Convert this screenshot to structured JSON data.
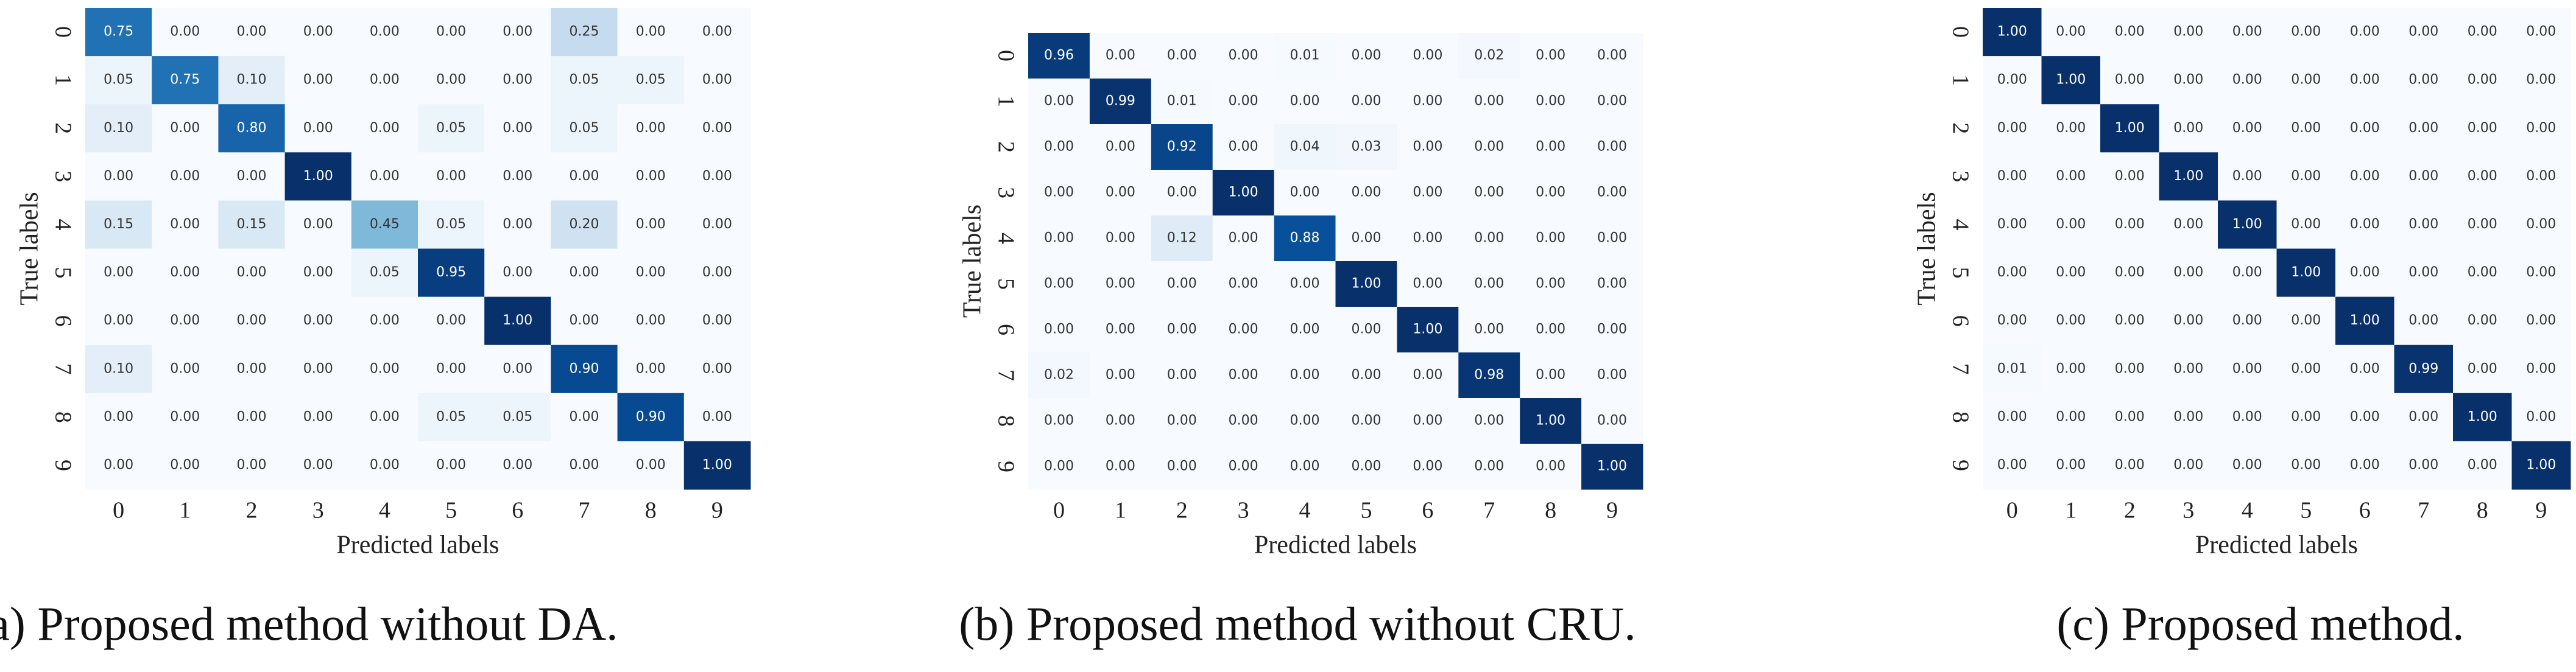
{
  "chart_data": [
    {
      "type": "heatmap",
      "caption": "(a) Proposed method without DA.",
      "xlabel": "Predicted labels",
      "ylabel": "True labels",
      "x_categories": [
        "0",
        "1",
        "2",
        "3",
        "4",
        "5",
        "6",
        "7",
        "8",
        "9"
      ],
      "y_categories": [
        "0",
        "1",
        "2",
        "3",
        "4",
        "5",
        "6",
        "7",
        "8",
        "9"
      ],
      "color_scale": [
        "#f7fbff",
        "#deebf7",
        "#c6dbef",
        "#9ecae1",
        "#6baed6",
        "#4292c6",
        "#2171b5",
        "#08519c",
        "#08306b"
      ],
      "values": [
        [
          0.75,
          0,
          0,
          0,
          0,
          0,
          0,
          0.25,
          0,
          0
        ],
        [
          0.05,
          0.75,
          0.1,
          0,
          0,
          0,
          0,
          0.05,
          0.05,
          0
        ],
        [
          0.1,
          0,
          0.8,
          0,
          0,
          0.05,
          0,
          0.05,
          0,
          0
        ],
        [
          0,
          0,
          0,
          1,
          0,
          0,
          0,
          0,
          0,
          0
        ],
        [
          0.15,
          0,
          0.15,
          0,
          0.45,
          0.05,
          0,
          0.2,
          0,
          0
        ],
        [
          0,
          0,
          0,
          0,
          0.05,
          0.95,
          0,
          0,
          0,
          0
        ],
        [
          0,
          0,
          0,
          0,
          0,
          0,
          1,
          0,
          0,
          0
        ],
        [
          0.1,
          0,
          0,
          0,
          0,
          0,
          0,
          0.9,
          0,
          0
        ],
        [
          0,
          0,
          0,
          0,
          0,
          0.05,
          0.05,
          0,
          0.9,
          0
        ],
        [
          0,
          0,
          0,
          0,
          0,
          0,
          0,
          0,
          0,
          1
        ]
      ],
      "value_labels": [
        [
          "0.75",
          "0.00",
          "0.00",
          "0.00",
          "0.00",
          "0.00",
          "0.00",
          "0.25",
          "0.00",
          "0.00"
        ],
        [
          "0.05",
          "0.75",
          "0.10",
          "0.00",
          "0.00",
          "0.00",
          "0.00",
          "0.05",
          "0.05",
          "0.00"
        ],
        [
          "0.10",
          "0.00",
          "0.80",
          "0.00",
          "0.00",
          "0.05",
          "0.00",
          "0.05",
          "0.00",
          "0.00"
        ],
        [
          "0.00",
          "0.00",
          "0.00",
          "1.00",
          "0.00",
          "0.00",
          "0.00",
          "0.00",
          "0.00",
          "0.00"
        ],
        [
          "0.15",
          "0.00",
          "0.15",
          "0.00",
          "0.45",
          "0.05",
          "0.00",
          "0.20",
          "0.00",
          "0.00"
        ],
        [
          "0.00",
          "0.00",
          "0.00",
          "0.00",
          "0.05",
          "0.95",
          "0.00",
          "0.00",
          "0.00",
          "0.00"
        ],
        [
          "0.00",
          "0.00",
          "0.00",
          "0.00",
          "0.00",
          "0.00",
          "1.00",
          "0.00",
          "0.00",
          "0.00"
        ],
        [
          "0.10",
          "0.00",
          "0.00",
          "0.00",
          "0.00",
          "0.00",
          "0.00",
          "0.90",
          "0.00",
          "0.00"
        ],
        [
          "0.00",
          "0.00",
          "0.00",
          "0.00",
          "0.00",
          "0.05",
          "0.05",
          "0.00",
          "0.90",
          "0.00"
        ],
        [
          "0.00",
          "0.00",
          "0.00",
          "0.00",
          "0.00",
          "0.00",
          "0.00",
          "0.00",
          "0.00",
          "1.00"
        ]
      ]
    },
    {
      "type": "heatmap",
      "caption": "(b) Proposed method without CRU.",
      "xlabel": "Predicted labels",
      "ylabel": "True labels",
      "x_categories": [
        "0",
        "1",
        "2",
        "3",
        "4",
        "5",
        "6",
        "7",
        "8",
        "9"
      ],
      "y_categories": [
        "0",
        "1",
        "2",
        "3",
        "4",
        "5",
        "6",
        "7",
        "8",
        "9"
      ],
      "color_scale": [
        "#f7fbff",
        "#deebf7",
        "#c6dbef",
        "#9ecae1",
        "#6baed6",
        "#4292c6",
        "#2171b5",
        "#08519c",
        "#08306b"
      ],
      "values": [
        [
          0.96,
          0,
          0,
          0,
          0.01,
          0,
          0,
          0.02,
          0,
          0
        ],
        [
          0,
          0.99,
          0.01,
          0,
          0,
          0,
          0,
          0,
          0,
          0
        ],
        [
          0,
          0,
          0.92,
          0,
          0.04,
          0.03,
          0,
          0,
          0,
          0
        ],
        [
          0,
          0,
          0,
          1,
          0,
          0,
          0,
          0,
          0,
          0
        ],
        [
          0,
          0,
          0.12,
          0,
          0.88,
          0,
          0,
          0,
          0,
          0
        ],
        [
          0,
          0,
          0,
          0,
          0,
          1,
          0,
          0,
          0,
          0
        ],
        [
          0,
          0,
          0,
          0,
          0,
          0,
          1,
          0,
          0,
          0
        ],
        [
          0.02,
          0,
          0,
          0,
          0,
          0,
          0,
          0.98,
          0,
          0
        ],
        [
          0,
          0,
          0,
          0,
          0,
          0,
          0,
          0,
          1,
          0
        ],
        [
          0,
          0,
          0,
          0,
          0,
          0,
          0,
          0,
          0,
          1
        ]
      ],
      "value_labels": [
        [
          "0.96",
          "0.00",
          "0.00",
          "0.00",
          "0.01",
          "0.00",
          "0.00",
          "0.02",
          "0.00",
          "0.00"
        ],
        [
          "0.00",
          "0.99",
          "0.01",
          "0.00",
          "0.00",
          "0.00",
          "0.00",
          "0.00",
          "0.00",
          "0.00"
        ],
        [
          "0.00",
          "0.00",
          "0.92",
          "0.00",
          "0.04",
          "0.03",
          "0.00",
          "0.00",
          "0.00",
          "0.00"
        ],
        [
          "0.00",
          "0.00",
          "0.00",
          "1.00",
          "0.00",
          "0.00",
          "0.00",
          "0.00",
          "0.00",
          "0.00"
        ],
        [
          "0.00",
          "0.00",
          "0.12",
          "0.00",
          "0.88",
          "0.00",
          "0.00",
          "0.00",
          "0.00",
          "0.00"
        ],
        [
          "0.00",
          "0.00",
          "0.00",
          "0.00",
          "0.00",
          "1.00",
          "0.00",
          "0.00",
          "0.00",
          "0.00"
        ],
        [
          "0.00",
          "0.00",
          "0.00",
          "0.00",
          "0.00",
          "0.00",
          "1.00",
          "0.00",
          "0.00",
          "0.00"
        ],
        [
          "0.02",
          "0.00",
          "0.00",
          "0.00",
          "0.00",
          "0.00",
          "0.00",
          "0.98",
          "0.00",
          "0.00"
        ],
        [
          "0.00",
          "0.00",
          "0.00",
          "0.00",
          "0.00",
          "0.00",
          "0.00",
          "0.00",
          "1.00",
          "0.00"
        ],
        [
          "0.00",
          "0.00",
          "0.00",
          "0.00",
          "0.00",
          "0.00",
          "0.00",
          "0.00",
          "0.00",
          "1.00"
        ]
      ]
    },
    {
      "type": "heatmap",
      "caption": "(c) Proposed method.",
      "xlabel": "Predicted labels",
      "ylabel": "True labels",
      "x_categories": [
        "0",
        "1",
        "2",
        "3",
        "4",
        "5",
        "6",
        "7",
        "8",
        "9"
      ],
      "y_categories": [
        "0",
        "1",
        "2",
        "3",
        "4",
        "5",
        "6",
        "7",
        "8",
        "9"
      ],
      "color_scale": [
        "#f7fbff",
        "#deebf7",
        "#c6dbef",
        "#9ecae1",
        "#6baed6",
        "#4292c6",
        "#2171b5",
        "#08519c",
        "#08306b"
      ],
      "values": [
        [
          1,
          0,
          0,
          0,
          0,
          0,
          0,
          0,
          0,
          0
        ],
        [
          0,
          1,
          0,
          0,
          0,
          0,
          0,
          0,
          0,
          0
        ],
        [
          0,
          0,
          1,
          0,
          0,
          0,
          0,
          0,
          0,
          0
        ],
        [
          0,
          0,
          0,
          1,
          0,
          0,
          0,
          0,
          0,
          0
        ],
        [
          0,
          0,
          0,
          0,
          1,
          0,
          0,
          0,
          0,
          0
        ],
        [
          0,
          0,
          0,
          0,
          0,
          1,
          0,
          0,
          0,
          0
        ],
        [
          0,
          0,
          0,
          0,
          0,
          0,
          1,
          0,
          0,
          0
        ],
        [
          0.01,
          0,
          0,
          0,
          0,
          0,
          0,
          0.99,
          0,
          0
        ],
        [
          0,
          0,
          0,
          0,
          0,
          0,
          0,
          0,
          1,
          0
        ],
        [
          0,
          0,
          0,
          0,
          0,
          0,
          0,
          0,
          0,
          1
        ]
      ],
      "value_labels": [
        [
          "1.00",
          "0.00",
          "0.00",
          "0.00",
          "0.00",
          "0.00",
          "0.00",
          "0.00",
          "0.00",
          "0.00"
        ],
        [
          "0.00",
          "1.00",
          "0.00",
          "0.00",
          "0.00",
          "0.00",
          "0.00",
          "0.00",
          "0.00",
          "0.00"
        ],
        [
          "0.00",
          "0.00",
          "1.00",
          "0.00",
          "0.00",
          "0.00",
          "0.00",
          "0.00",
          "0.00",
          "0.00"
        ],
        [
          "0.00",
          "0.00",
          "0.00",
          "1.00",
          "0.00",
          "0.00",
          "0.00",
          "0.00",
          "0.00",
          "0.00"
        ],
        [
          "0.00",
          "0.00",
          "0.00",
          "0.00",
          "1.00",
          "0.00",
          "0.00",
          "0.00",
          "0.00",
          "0.00"
        ],
        [
          "0.00",
          "0.00",
          "0.00",
          "0.00",
          "0.00",
          "1.00",
          "0.00",
          "0.00",
          "0.00",
          "0.00"
        ],
        [
          "0.00",
          "0.00",
          "0.00",
          "0.00",
          "0.00",
          "0.00",
          "1.00",
          "0.00",
          "0.00",
          "0.00"
        ],
        [
          "0.01",
          "0.00",
          "0.00",
          "0.00",
          "0.00",
          "0.00",
          "0.00",
          "0.99",
          "0.00",
          "0.00"
        ],
        [
          "0.00",
          "0.00",
          "0.00",
          "0.00",
          "0.00",
          "0.00",
          "0.00",
          "0.00",
          "1.00",
          "0.00"
        ],
        [
          "0.00",
          "0.00",
          "0.00",
          "0.00",
          "0.00",
          "0.00",
          "0.00",
          "0.00",
          "0.00",
          "1.00"
        ]
      ]
    }
  ]
}
